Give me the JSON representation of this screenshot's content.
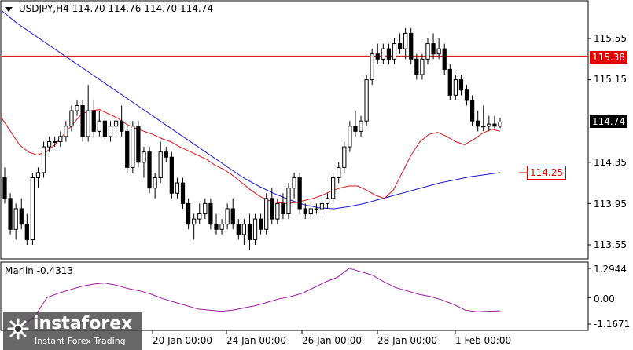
{
  "header": {
    "symbol_info": "USDJPY,H4 114.70 114.76 114.70 114.74",
    "dropdown_icon": "triangle-down-icon"
  },
  "price_axis": {
    "labels": [
      "115.55",
      "115.15",
      "114.74",
      "114.35",
      "113.95",
      "113.55"
    ],
    "current_price_tag": "114.74",
    "horizontal_level_tag": "115.38",
    "target_tag": "114.25"
  },
  "indicator": {
    "title": "Marlin -0.4313",
    "axis_labels": [
      "1.2944",
      "0.00",
      "-1.1671"
    ]
  },
  "time_axis": {
    "labels": [
      "20 Jan 00:00",
      "24 Jan 00:00",
      "26 Jan 00:00",
      "28 Jan 00:00",
      "1 Feb 00:00"
    ]
  },
  "watermark": {
    "brand": "instaforex",
    "tagline": "Instant Forex Trading",
    "logo_icon": "instaforex-logo-icon"
  },
  "colors": {
    "candle": "#000000",
    "ma_fast": "#e0121b",
    "ma_slow": "#1a1ad6",
    "level": "#d40000",
    "oscillator": "#9c1aa0",
    "grid": "#c0c0c0"
  },
  "chart_data": {
    "type": "candlestick",
    "ohlc": [
      [
        114.2,
        114.3,
        113.95,
        114.0
      ],
      [
        114.0,
        114.05,
        113.65,
        113.7
      ],
      [
        113.7,
        113.95,
        113.6,
        113.9
      ],
      [
        113.9,
        114.0,
        113.7,
        113.75
      ],
      [
        113.75,
        113.85,
        113.55,
        113.6
      ],
      [
        113.6,
        114.25,
        113.55,
        114.2
      ],
      [
        114.2,
        114.3,
        114.1,
        114.25
      ],
      [
        114.25,
        114.55,
        114.2,
        114.5
      ],
      [
        114.5,
        114.6,
        114.45,
        114.55
      ],
      [
        114.55,
        114.6,
        114.5,
        114.55
      ],
      [
        114.55,
        114.65,
        114.5,
        114.6
      ],
      [
        114.6,
        114.75,
        114.55,
        114.7
      ],
      [
        114.7,
        114.9,
        114.65,
        114.85
      ],
      [
        114.85,
        114.95,
        114.8,
        114.9
      ],
      [
        114.9,
        114.95,
        114.55,
        114.6
      ],
      [
        114.6,
        115.1,
        114.55,
        114.85
      ],
      [
        114.85,
        114.95,
        114.6,
        114.65
      ],
      [
        114.65,
        114.85,
        114.6,
        114.75
      ],
      [
        114.75,
        114.8,
        114.55,
        114.6
      ],
      [
        114.6,
        114.75,
        114.55,
        114.7
      ],
      [
        114.7,
        114.8,
        114.6,
        114.75
      ],
      [
        114.75,
        114.9,
        114.6,
        114.65
      ],
      [
        114.65,
        114.7,
        114.25,
        114.3
      ],
      [
        114.3,
        114.75,
        114.25,
        114.7
      ],
      [
        114.7,
        114.75,
        114.3,
        114.35
      ],
      [
        114.35,
        114.5,
        114.2,
        114.45
      ],
      [
        114.45,
        114.5,
        114.05,
        114.1
      ],
      [
        114.1,
        114.25,
        114.0,
        114.2
      ],
      [
        114.2,
        114.55,
        114.15,
        114.45
      ],
      [
        114.45,
        114.5,
        114.35,
        114.4
      ],
      [
        114.4,
        114.45,
        114.0,
        114.05
      ],
      [
        114.05,
        114.2,
        114.0,
        114.15
      ],
      [
        114.15,
        114.2,
        113.9,
        113.95
      ],
      [
        113.95,
        114.0,
        113.7,
        113.75
      ],
      [
        113.75,
        113.85,
        113.6,
        113.8
      ],
      [
        113.8,
        113.95,
        113.75,
        113.85
      ],
      [
        113.85,
        114.0,
        113.8,
        113.95
      ],
      [
        113.95,
        114.0,
        113.7,
        113.75
      ],
      [
        113.75,
        113.85,
        113.65,
        113.7
      ],
      [
        113.7,
        113.8,
        113.65,
        113.75
      ],
      [
        113.75,
        113.95,
        113.7,
        113.9
      ],
      [
        113.9,
        114.0,
        113.7,
        113.75
      ],
      [
        113.75,
        113.8,
        113.6,
        113.65
      ],
      [
        113.65,
        113.8,
        113.55,
        113.75
      ],
      [
        113.75,
        113.85,
        113.5,
        113.6
      ],
      [
        113.6,
        113.85,
        113.55,
        113.8
      ],
      [
        113.8,
        113.85,
        113.65,
        113.7
      ],
      [
        113.7,
        114.05,
        113.65,
        114.0
      ],
      [
        114.0,
        114.1,
        113.75,
        113.8
      ],
      [
        113.8,
        114.0,
        113.75,
        113.95
      ],
      [
        113.95,
        114.05,
        113.8,
        113.85
      ],
      [
        113.85,
        114.15,
        113.8,
        114.1
      ],
      [
        114.1,
        114.25,
        114.0,
        114.2
      ],
      [
        114.2,
        114.25,
        113.85,
        113.9
      ],
      [
        113.9,
        113.95,
        113.8,
        113.85
      ],
      [
        113.85,
        113.95,
        113.8,
        113.9
      ],
      [
        113.9,
        113.95,
        113.85,
        113.9
      ],
      [
        113.9,
        114.0,
        113.85,
        113.95
      ],
      [
        113.95,
        114.05,
        113.9,
        114.0
      ],
      [
        114.0,
        114.25,
        113.95,
        114.2
      ],
      [
        114.2,
        114.35,
        114.15,
        114.3
      ],
      [
        114.3,
        114.55,
        114.25,
        114.5
      ],
      [
        114.5,
        114.75,
        114.45,
        114.7
      ],
      [
        114.7,
        114.85,
        114.6,
        114.65
      ],
      [
        114.65,
        114.8,
        114.6,
        114.75
      ],
      [
        114.75,
        115.2,
        114.7,
        115.15
      ],
      [
        115.15,
        115.45,
        115.1,
        115.4
      ],
      [
        115.4,
        115.5,
        115.3,
        115.35
      ],
      [
        115.35,
        115.5,
        115.3,
        115.45
      ],
      [
        115.45,
        115.5,
        115.3,
        115.35
      ],
      [
        115.35,
        115.55,
        115.3,
        115.5
      ],
      [
        115.5,
        115.6,
        115.4,
        115.45
      ],
      [
        115.45,
        115.65,
        115.35,
        115.6
      ],
      [
        115.6,
        115.65,
        115.3,
        115.35
      ],
      [
        115.35,
        115.4,
        115.15,
        115.2
      ],
      [
        115.2,
        115.4,
        115.15,
        115.35
      ],
      [
        115.35,
        115.55,
        115.3,
        115.5
      ],
      [
        115.5,
        115.6,
        115.35,
        115.4
      ],
      [
        115.4,
        115.55,
        115.35,
        115.45
      ],
      [
        115.45,
        115.5,
        115.2,
        115.25
      ],
      [
        115.25,
        115.3,
        114.95,
        115.0
      ],
      [
        115.0,
        115.2,
        114.95,
        115.15
      ],
      [
        115.15,
        115.2,
        115.0,
        115.05
      ],
      [
        115.05,
        115.1,
        114.9,
        114.95
      ],
      [
        114.95,
        115.0,
        114.7,
        114.75
      ],
      [
        114.75,
        114.85,
        114.65,
        114.7
      ],
      [
        114.7,
        114.9,
        114.65,
        114.7
      ],
      [
        114.7,
        114.8,
        114.65,
        114.72
      ],
      [
        114.72,
        114.8,
        114.68,
        114.7
      ],
      [
        114.7,
        114.78,
        114.68,
        114.74
      ]
    ],
    "ma_fast": [
      114.78,
      114.65,
      114.52,
      114.45,
      114.42,
      114.45,
      114.52,
      114.62,
      114.72,
      114.82,
      114.85,
      114.86,
      114.82,
      114.78,
      114.72,
      114.68,
      114.65,
      114.62,
      114.58,
      114.55,
      114.5,
      114.46,
      114.42,
      114.38,
      114.32,
      114.28,
      114.22,
      114.15,
      114.08,
      114.02,
      113.98,
      113.96,
      113.95,
      113.96,
      113.98,
      114.0,
      114.03,
      114.07,
      114.1,
      114.12,
      114.12,
      114.08,
      114.03,
      114.0,
      114.08,
      114.25,
      114.42,
      114.55,
      114.62,
      114.64,
      114.6,
      114.55,
      114.52,
      114.57,
      114.63,
      114.67,
      114.65
    ],
    "ma_slow": [
      115.82,
      115.7,
      115.6,
      115.5,
      115.4,
      115.3,
      115.2,
      115.1,
      115.0,
      114.9,
      114.8,
      114.7,
      114.6,
      114.5,
      114.4,
      114.3,
      114.2,
      114.12,
      114.05,
      113.99,
      113.94,
      113.91,
      113.9,
      113.92,
      113.95,
      113.99,
      114.03,
      114.07,
      114.11,
      114.15,
      114.18,
      114.21,
      114.23,
      114.25
    ],
    "level": 115.38,
    "target": 114.25,
    "oscillator": [
      -1.2,
      -0.8,
      0.0,
      0.2,
      0.35,
      0.5,
      0.6,
      0.65,
      0.55,
      0.4,
      0.3,
      0.15,
      -0.05,
      -0.2,
      -0.35,
      -0.5,
      -0.55,
      -0.6,
      -0.55,
      -0.45,
      -0.35,
      -0.2,
      -0.05,
      0.05,
      0.2,
      0.45,
      0.7,
      0.9,
      1.3,
      1.15,
      1.0,
      0.7,
      0.45,
      0.3,
      0.15,
      0.05,
      -0.1,
      -0.3,
      -0.55,
      -0.62,
      -0.6,
      -0.58
    ]
  }
}
